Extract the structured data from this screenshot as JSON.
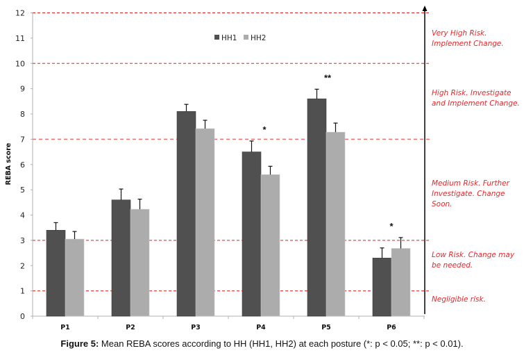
{
  "chart_data": {
    "type": "bar",
    "title": "",
    "xlabel": "",
    "ylabel": "REBA score",
    "ylim": [
      0,
      12
    ],
    "yticks": [
      "0",
      "1",
      "2",
      "3",
      "4",
      "5",
      "6",
      "7",
      "8",
      "9",
      "10",
      "11",
      "12"
    ],
    "categories": [
      "P1",
      "P2",
      "P3",
      "P4",
      "P5",
      "P6"
    ],
    "series": [
      {
        "name": "HH1",
        "color": "#505050",
        "values": [
          3.4,
          4.6,
          8.1,
          6.5,
          8.6,
          2.3
        ],
        "error": [
          0.3,
          0.43,
          0.28,
          0.43,
          0.38,
          0.4
        ]
      },
      {
        "name": "HH2",
        "color": "#acacac",
        "values": [
          3.05,
          4.23,
          7.42,
          5.6,
          7.28,
          2.68
        ],
        "error": [
          0.3,
          0.4,
          0.33,
          0.33,
          0.36,
          0.43
        ]
      }
    ],
    "significance": [
      {
        "category": "P4",
        "label": "*"
      },
      {
        "category": "P5",
        "label": "**"
      },
      {
        "category": "P6",
        "label": "*"
      }
    ],
    "threshold_lines": [
      1,
      3,
      7,
      10,
      12
    ],
    "legend_position": "top-center",
    "risk_labels": [
      {
        "text": "Very High Risk. Implement Change.",
        "range": [
          10,
          12
        ]
      },
      {
        "text": "High Risk. Investigate and Implement Change.",
        "range": [
          7,
          10
        ]
      },
      {
        "text": "Medium Risk. Further Investigate. Change Soon.",
        "range": [
          3,
          7
        ]
      },
      {
        "text": "Low Risk. Change may be needed.",
        "range": [
          1,
          3
        ]
      },
      {
        "text": "Negligible risk.",
        "range": [
          0,
          1
        ]
      }
    ]
  },
  "caption": {
    "label": "Figure 5:",
    "text": " Mean REBA scores according to HH (HH1, HH2) at each posture (*: p < 0.05; **: p < 0.01)."
  }
}
